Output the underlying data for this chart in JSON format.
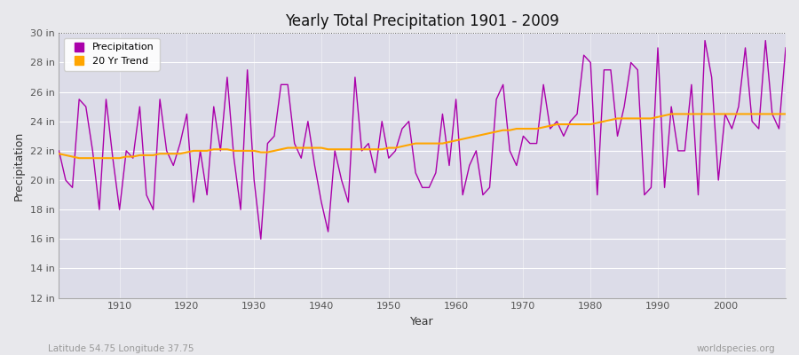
{
  "title": "Yearly Total Precipitation 1901 - 2009",
  "xlabel": "Year",
  "ylabel": "Precipitation",
  "bottom_left_label": "Latitude 54.75 Longitude 37.75",
  "bottom_right_label": "worldspecies.org",
  "precip_color": "#AA00AA",
  "trend_color": "#FFA500",
  "background_color": "#E8E8EC",
  "plot_bg_color": "#DCDCE8",
  "ylim": [
    12,
    30
  ],
  "yticks": [
    12,
    14,
    16,
    18,
    20,
    22,
    24,
    26,
    28,
    30
  ],
  "ytick_labels": [
    "12 in",
    "14 in",
    "16 in",
    "18 in",
    "20 in",
    "22 in",
    "24 in",
    "26 in",
    "28 in",
    "30 in"
  ],
  "xticks": [
    1910,
    1920,
    1930,
    1940,
    1950,
    1960,
    1970,
    1980,
    1990,
    2000
  ],
  "years": [
    1901,
    1902,
    1903,
    1904,
    1905,
    1906,
    1907,
    1908,
    1909,
    1910,
    1911,
    1912,
    1913,
    1914,
    1915,
    1916,
    1917,
    1918,
    1919,
    1920,
    1921,
    1922,
    1923,
    1924,
    1925,
    1926,
    1927,
    1928,
    1929,
    1930,
    1931,
    1932,
    1933,
    1934,
    1935,
    1936,
    1937,
    1938,
    1939,
    1940,
    1941,
    1942,
    1943,
    1944,
    1945,
    1946,
    1947,
    1948,
    1949,
    1950,
    1951,
    1952,
    1953,
    1954,
    1955,
    1956,
    1957,
    1958,
    1959,
    1960,
    1961,
    1962,
    1963,
    1964,
    1965,
    1966,
    1967,
    1968,
    1969,
    1970,
    1971,
    1972,
    1973,
    1974,
    1975,
    1976,
    1977,
    1978,
    1979,
    1980,
    1981,
    1982,
    1983,
    1984,
    1985,
    1986,
    1987,
    1988,
    1989,
    1990,
    1991,
    1992,
    1993,
    1994,
    1995,
    1996,
    1997,
    1998,
    1999,
    2000,
    2001,
    2002,
    2003,
    2004,
    2005,
    2006,
    2007,
    2008,
    2009
  ],
  "precip": [
    22.0,
    20.0,
    19.5,
    25.5,
    25.0,
    22.0,
    18.0,
    25.5,
    21.5,
    18.0,
    22.0,
    21.5,
    25.0,
    19.0,
    18.0,
    25.5,
    22.0,
    21.0,
    22.5,
    24.5,
    18.5,
    22.0,
    19.0,
    25.0,
    22.0,
    27.0,
    21.5,
    18.0,
    27.5,
    20.0,
    16.0,
    22.5,
    23.0,
    26.5,
    26.5,
    22.5,
    21.5,
    24.0,
    21.0,
    18.5,
    16.5,
    22.0,
    20.0,
    18.5,
    27.0,
    22.0,
    22.5,
    20.5,
    24.0,
    21.5,
    22.0,
    23.5,
    24.0,
    20.5,
    19.5,
    19.5,
    20.5,
    24.5,
    21.0,
    25.5,
    19.0,
    21.0,
    22.0,
    19.0,
    19.5,
    25.5,
    26.5,
    22.0,
    21.0,
    23.0,
    22.5,
    22.5,
    26.5,
    23.5,
    24.0,
    23.0,
    24.0,
    24.5,
    28.5,
    28.0,
    19.0,
    27.5,
    27.5,
    23.0,
    25.0,
    28.0,
    27.5,
    19.0,
    19.5,
    29.0,
    19.5,
    25.0,
    22.0,
    22.0,
    26.5,
    19.0,
    29.5,
    27.0,
    20.0,
    24.5,
    23.5,
    25.0,
    29.0,
    24.0,
    23.5,
    29.5,
    24.5,
    23.5,
    29.0
  ],
  "trend": [
    21.8,
    21.7,
    21.6,
    21.5,
    21.5,
    21.5,
    21.5,
    21.5,
    21.5,
    21.5,
    21.6,
    21.6,
    21.7,
    21.7,
    21.7,
    21.8,
    21.8,
    21.8,
    21.8,
    21.9,
    22.0,
    22.0,
    22.0,
    22.1,
    22.1,
    22.1,
    22.0,
    22.0,
    22.0,
    22.0,
    21.9,
    21.9,
    22.0,
    22.1,
    22.2,
    22.2,
    22.2,
    22.2,
    22.2,
    22.2,
    22.1,
    22.1,
    22.1,
    22.1,
    22.1,
    22.1,
    22.1,
    22.1,
    22.1,
    22.2,
    22.2,
    22.3,
    22.4,
    22.5,
    22.5,
    22.5,
    22.5,
    22.5,
    22.6,
    22.7,
    22.8,
    22.9,
    23.0,
    23.1,
    23.2,
    23.3,
    23.4,
    23.4,
    23.5,
    23.5,
    23.5,
    23.5,
    23.6,
    23.7,
    23.8,
    23.8,
    23.8,
    23.8,
    23.8,
    23.8,
    23.9,
    24.0,
    24.1,
    24.2,
    24.2,
    24.2,
    24.2,
    24.2,
    24.2,
    24.3,
    24.4,
    24.5,
    24.5,
    24.5,
    24.5,
    24.5,
    24.5,
    24.5,
    24.5,
    24.5,
    24.5,
    24.5,
    24.5,
    24.5,
    24.5,
    24.5,
    24.5,
    24.5,
    24.5
  ]
}
